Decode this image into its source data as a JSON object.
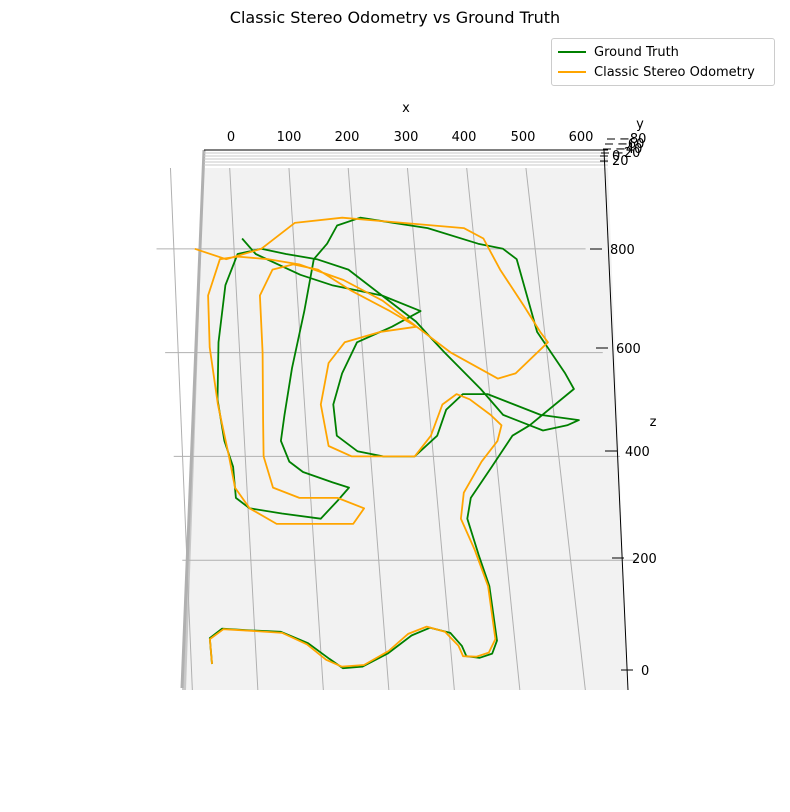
{
  "chart_data": {
    "type": "line",
    "projection": "3d",
    "title": "Classic Stereo Odometry vs Ground Truth",
    "xlabel": "x",
    "ylabel": "y",
    "zlabel": "z",
    "x_ticks": [
      "0",
      "100",
      "200",
      "300",
      "400",
      "500",
      "600"
    ],
    "z_ticks": [
      "0",
      "200",
      "400",
      "600",
      "800"
    ],
    "y_ticks": [
      "−80",
      "−60",
      "−40",
      "−20",
      "0",
      "20"
    ],
    "grid": true,
    "legend_position": "top-right",
    "series": [
      {
        "name": "Ground Truth",
        "color": "#008000",
        "points": [
          [
            0,
            0
          ],
          [
            0,
            50
          ],
          [
            20,
            68
          ],
          [
            60,
            65
          ],
          [
            110,
            62
          ],
          [
            150,
            40
          ],
          [
            180,
            10
          ],
          [
            200,
            -8
          ],
          [
            230,
            -5
          ],
          [
            270,
            20
          ],
          [
            310,
            55
          ],
          [
            340,
            70
          ],
          [
            370,
            60
          ],
          [
            385,
            35
          ],
          [
            390,
            15
          ],
          [
            410,
            12
          ],
          [
            430,
            20
          ],
          [
            440,
            45
          ],
          [
            440,
            150
          ],
          [
            430,
            210
          ],
          [
            420,
            280
          ],
          [
            430,
            320
          ],
          [
            470,
            380
          ],
          [
            510,
            440
          ],
          [
            540,
            460
          ],
          [
            620,
            530
          ],
          [
            610,
            560
          ],
          [
            575,
            640
          ],
          [
            560,
            780
          ],
          [
            540,
            800
          ],
          [
            500,
            810
          ],
          [
            420,
            840
          ],
          [
            310,
            860
          ],
          [
            270,
            845
          ],
          [
            250,
            810
          ],
          [
            225,
            780
          ],
          [
            200,
            680
          ],
          [
            170,
            570
          ],
          [
            150,
            480
          ],
          [
            140,
            430
          ],
          [
            150,
            390
          ],
          [
            170,
            370
          ],
          [
            215,
            350
          ],
          [
            240,
            340
          ],
          [
            220,
            315
          ],
          [
            190,
            280
          ],
          [
            130,
            290
          ],
          [
            80,
            300
          ],
          [
            60,
            320
          ],
          [
            60,
            380
          ],
          [
            50,
            430
          ],
          [
            45,
            510
          ],
          [
            55,
            620
          ],
          [
            75,
            730
          ],
          [
            100,
            790
          ],
          [
            140,
            800
          ],
          [
            180,
            790
          ],
          [
            230,
            780
          ],
          [
            280,
            760
          ],
          [
            330,
            710
          ],
          [
            380,
            660
          ],
          [
            400,
            630
          ],
          [
            420,
            600
          ],
          [
            470,
            530
          ],
          [
            500,
            480
          ],
          [
            540,
            460
          ],
          [
            560,
            450
          ],
          [
            600,
            460
          ],
          [
            620,
            470
          ],
          [
            560,
            480
          ],
          [
            520,
            500
          ],
          [
            480,
            520
          ],
          [
            440,
            520
          ],
          [
            410,
            490
          ],
          [
            390,
            440
          ],
          [
            350,
            400
          ],
          [
            300,
            400
          ],
          [
            260,
            410
          ],
          [
            230,
            440
          ],
          [
            230,
            500
          ],
          [
            250,
            560
          ],
          [
            280,
            620
          ],
          [
            340,
            650
          ],
          [
            390,
            680
          ],
          [
            330,
            710
          ],
          [
            250,
            730
          ],
          [
            200,
            750
          ],
          [
            130,
            790
          ],
          [
            110,
            820
          ]
        ]
      },
      {
        "name": "Classic Stereo Odometry",
        "color": "#FFA500",
        "points": [
          [
            0,
            0
          ],
          [
            0,
            48
          ],
          [
            22,
            67
          ],
          [
            65,
            64
          ],
          [
            112,
            60
          ],
          [
            148,
            38
          ],
          [
            175,
            8
          ],
          [
            198,
            -5
          ],
          [
            232,
            -2
          ],
          [
            272,
            25
          ],
          [
            305,
            58
          ],
          [
            335,
            72
          ],
          [
            362,
            62
          ],
          [
            380,
            35
          ],
          [
            385,
            15
          ],
          [
            405,
            14
          ],
          [
            425,
            22
          ],
          [
            438,
            48
          ],
          [
            438,
            150
          ],
          [
            425,
            220
          ],
          [
            410,
            280
          ],
          [
            420,
            330
          ],
          [
            455,
            390
          ],
          [
            485,
            430
          ],
          [
            495,
            460
          ],
          [
            480,
            480
          ],
          [
            450,
            510
          ],
          [
            430,
            520
          ],
          [
            405,
            500
          ],
          [
            380,
            440
          ],
          [
            350,
            400
          ],
          [
            300,
            400
          ],
          [
            250,
            400
          ],
          [
            215,
            420
          ],
          [
            210,
            500
          ],
          [
            230,
            580
          ],
          [
            260,
            620
          ],
          [
            320,
            640
          ],
          [
            380,
            650
          ],
          [
            340,
            680
          ],
          [
            280,
            720
          ],
          [
            230,
            760
          ],
          [
            190,
            770
          ],
          [
            155,
            760
          ],
          [
            130,
            710
          ],
          [
            125,
            600
          ],
          [
            115,
            470
          ],
          [
            110,
            400
          ],
          [
            120,
            340
          ],
          [
            160,
            320
          ],
          [
            220,
            320
          ],
          [
            260,
            300
          ],
          [
            240,
            270
          ],
          [
            180,
            270
          ],
          [
            120,
            270
          ],
          [
            80,
            300
          ],
          [
            60,
            340
          ],
          [
            55,
            400
          ],
          [
            45,
            500
          ],
          [
            40,
            610
          ],
          [
            45,
            710
          ],
          [
            70,
            780
          ],
          [
            100,
            785
          ],
          [
            150,
            780
          ],
          [
            200,
            770
          ],
          [
            270,
            740
          ],
          [
            330,
            700
          ],
          [
            380,
            650
          ],
          [
            430,
            600
          ],
          [
            500,
            550
          ],
          [
            530,
            560
          ],
          [
            590,
            620
          ],
          [
            580,
            640
          ],
          [
            560,
            690
          ],
          [
            530,
            760
          ],
          [
            510,
            820
          ],
          [
            480,
            840
          ],
          [
            380,
            850
          ],
          [
            280,
            860
          ],
          [
            200,
            850
          ],
          [
            140,
            800
          ],
          [
            80,
            780
          ],
          [
            30,
            800
          ]
        ]
      }
    ]
  }
}
